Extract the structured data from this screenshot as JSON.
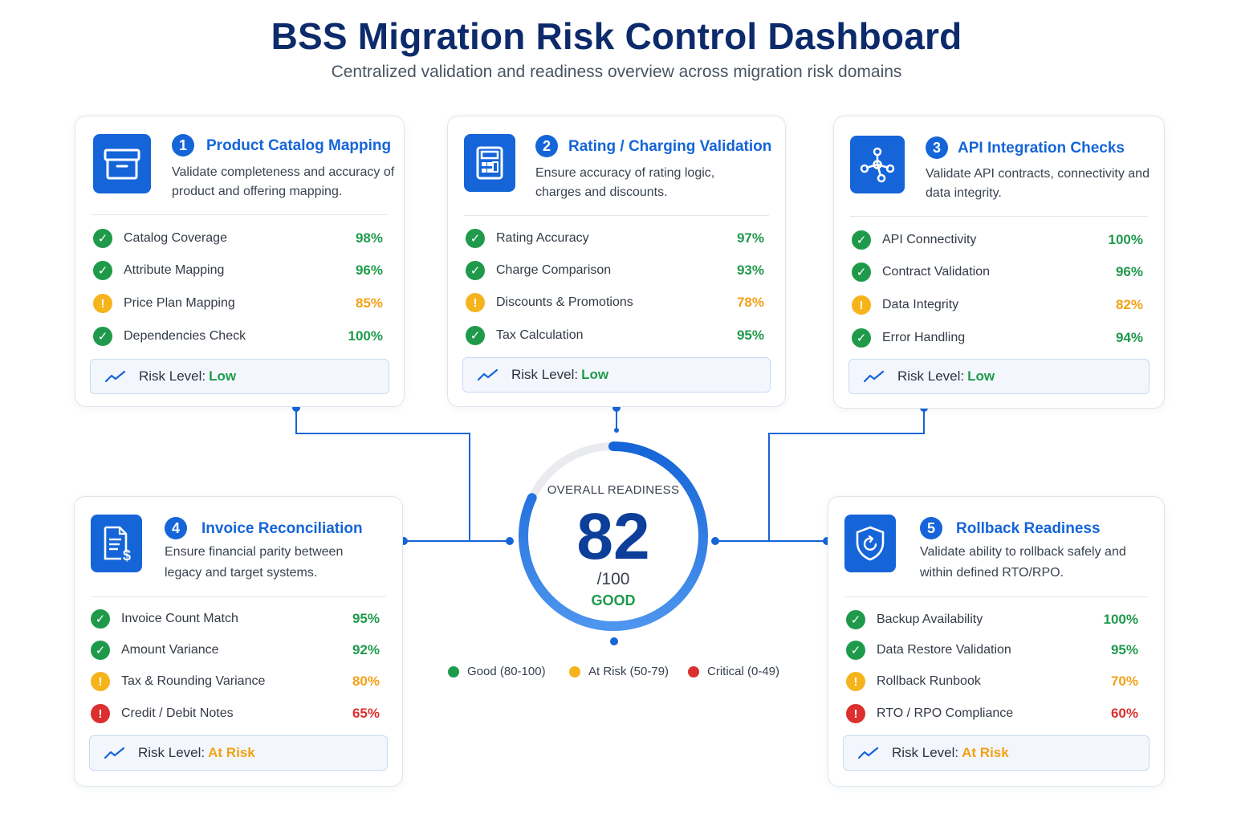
{
  "header": {
    "title": "BSS Migration Risk Control Dashboard",
    "subtitle": "Centralized validation and readiness overview across migration risk domains"
  },
  "risk_level_label": "Risk Level:",
  "cards": [
    {
      "number": "1",
      "title": "Product Catalog Mapping",
      "description": "Validate completeness and accuracy of product and offering mapping.",
      "icon": "box-icon",
      "metrics": [
        {
          "label": "Catalog Coverage",
          "value": "98%",
          "status": "ok"
        },
        {
          "label": "Attribute Mapping",
          "value": "96%",
          "status": "ok"
        },
        {
          "label": "Price Plan Mapping",
          "value": "85%",
          "status": "warn"
        },
        {
          "label": "Dependencies Check",
          "value": "100%",
          "status": "ok"
        }
      ],
      "risk_level": "Low"
    },
    {
      "number": "2",
      "title": "Rating / Charging Validation",
      "description": "Ensure accuracy of rating logic, charges and discounts.",
      "icon": "calculator-icon",
      "metrics": [
        {
          "label": "Rating Accuracy",
          "value": "97%",
          "status": "ok"
        },
        {
          "label": "Charge Comparison",
          "value": "93%",
          "status": "ok"
        },
        {
          "label": "Discounts & Promotions",
          "value": "78%",
          "status": "warn"
        },
        {
          "label": "Tax Calculation",
          "value": "95%",
          "status": "ok"
        }
      ],
      "risk_level": "Low"
    },
    {
      "number": "3",
      "title": "API Integration Checks",
      "description": "Validate API contracts, connectivity and data integrity.",
      "icon": "network-icon",
      "metrics": [
        {
          "label": "API Connectivity",
          "value": "100%",
          "status": "ok"
        },
        {
          "label": "Contract Validation",
          "value": "96%",
          "status": "ok"
        },
        {
          "label": "Data Integrity",
          "value": "82%",
          "status": "warn"
        },
        {
          "label": "Error Handling",
          "value": "94%",
          "status": "ok"
        }
      ],
      "risk_level": "Low"
    },
    {
      "number": "4",
      "title": "Invoice Reconciliation",
      "description": "Ensure financial parity between legacy and target systems.",
      "icon": "invoice-icon",
      "metrics": [
        {
          "label": "Invoice Count Match",
          "value": "95%",
          "status": "ok"
        },
        {
          "label": "Amount Variance",
          "value": "92%",
          "status": "ok"
        },
        {
          "label": "Tax & Rounding Variance",
          "value": "80%",
          "status": "warn"
        },
        {
          "label": "Credit / Debit Notes",
          "value": "65%",
          "status": "crit"
        }
      ],
      "risk_level": "At Risk"
    },
    {
      "number": "5",
      "title": "Rollback Readiness",
      "description": "Validate ability to rollback safely and within defined RTO/RPO.",
      "icon": "shield-icon",
      "metrics": [
        {
          "label": "Backup Availability",
          "value": "100%",
          "status": "ok"
        },
        {
          "label": "Data Restore Validation",
          "value": "95%",
          "status": "ok"
        },
        {
          "label": "Rollback Runbook",
          "value": "70%",
          "status": "warn"
        },
        {
          "label": "RTO / RPO Compliance",
          "value": "60%",
          "status": "crit"
        }
      ],
      "risk_level": "At Risk"
    }
  ],
  "gauge": {
    "label": "OVERALL READINESS",
    "score": "82",
    "max": "/100",
    "rating": "GOOD",
    "fraction": 0.82
  },
  "legend": [
    {
      "label": "Good (80-100)",
      "color": "#1f9a4b"
    },
    {
      "label": "At Risk (50-79)",
      "color": "#f6b41c"
    },
    {
      "label": "Critical (0-49)",
      "color": "#dc2f2f"
    }
  ],
  "colors": {
    "primary": "#1565d8",
    "title": "#0d2b6b",
    "good": "#1f9a4b",
    "warning": "#f6b41c",
    "critical": "#dc2f2f"
  }
}
